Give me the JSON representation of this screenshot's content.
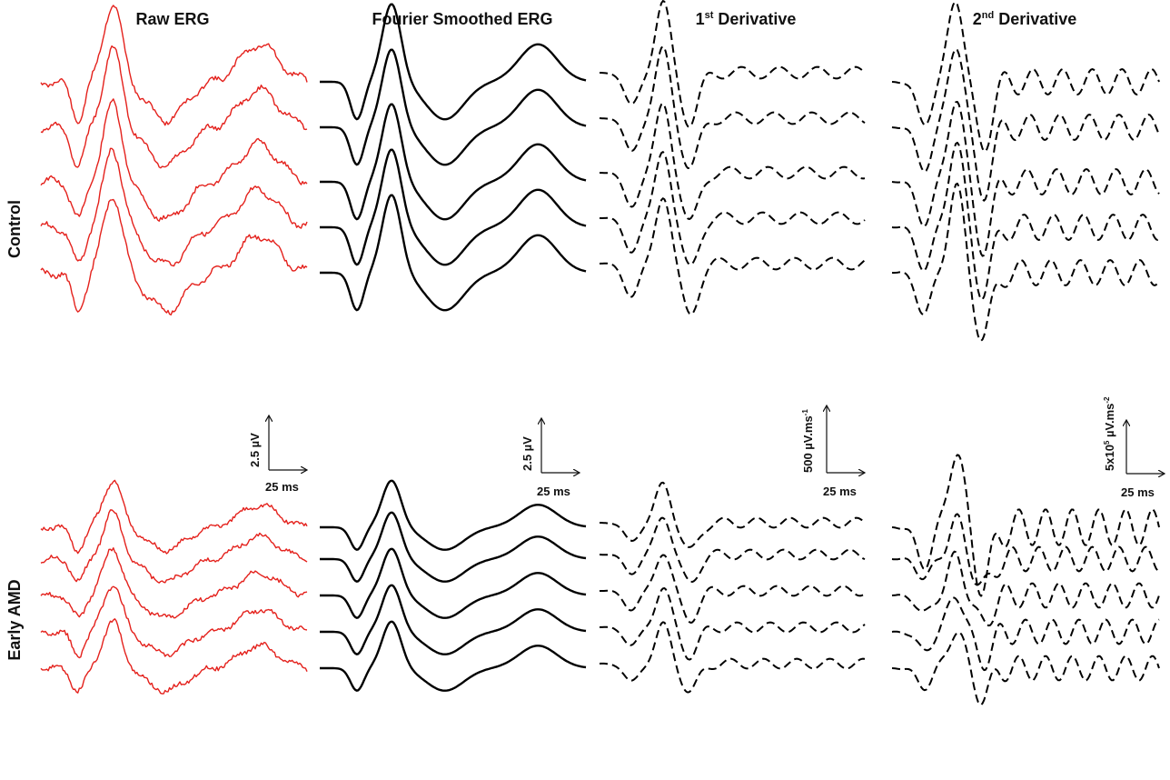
{
  "chart_data": {
    "type": "line",
    "columns": [
      {
        "title": "Raw ERG",
        "style": "raw",
        "color": "#e4211c",
        "scalebar": {
          "y": "2.5 µV",
          "x": "25 ms"
        }
      },
      {
        "title": "Fourier Smoothed ERG",
        "style": "smooth",
        "color": "#000000",
        "scalebar": {
          "y": "2.5 µV",
          "x": "25 ms"
        }
      },
      {
        "title_main": "1",
        "title_sup": "st",
        "title_rest": " Derivative",
        "style": "dashed",
        "color": "#000000",
        "scalebar": {
          "y_main": "500 µV.ms",
          "y_sup": "-1",
          "x": "25 ms"
        }
      },
      {
        "title_main": "2",
        "title_sup": "nd",
        "title_rest": " Derivative",
        "style": "dashed",
        "color": "#000000",
        "scalebar": {
          "y_pre": "5x10",
          "y_sup1": "5",
          "y_main": " µV.ms",
          "y_sup2": "-2",
          "x": "25 ms"
        }
      }
    ],
    "rows": [
      {
        "label": "Control",
        "traces": 5
      },
      {
        "label": "Early AMD",
        "traces": 5
      }
    ]
  }
}
